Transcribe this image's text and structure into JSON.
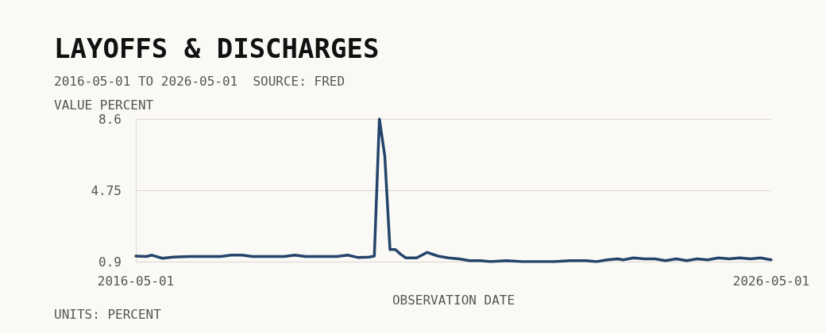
{
  "chart_data": {
    "type": "line",
    "title": "LAYOFFS & DISCHARGES",
    "subtitle": "2016-05-01 TO 2026-05-01  SOURCE: FRED",
    "ylabel": "VALUE PERCENT",
    "xlabel": "OBSERVATION DATE",
    "annotations": [
      "UNITS: PERCENT"
    ],
    "x": [
      "2016-05",
      "2016-07",
      "2016-08",
      "2016-10",
      "2016-12",
      "2017-03",
      "2017-06",
      "2017-09",
      "2017-11",
      "2018-01",
      "2018-03",
      "2018-06",
      "2018-09",
      "2018-11",
      "2019-01",
      "2019-04",
      "2019-07",
      "2019-09",
      "2019-11",
      "2020-01",
      "2020-02",
      "2020-03",
      "2020-04",
      "2020-05",
      "2020-06",
      "2020-07",
      "2020-08",
      "2020-10",
      "2020-12",
      "2021-02",
      "2021-04",
      "2021-06",
      "2021-08",
      "2021-10",
      "2021-12",
      "2022-03",
      "2022-06",
      "2022-09",
      "2022-12",
      "2023-03",
      "2023-06",
      "2023-08",
      "2023-10",
      "2023-12",
      "2024-01",
      "2024-03",
      "2024-05",
      "2024-07",
      "2024-09",
      "2024-11",
      "2025-01",
      "2025-03",
      "2025-05",
      "2025-07",
      "2025-09",
      "2025-11",
      "2026-01",
      "2026-03",
      "2026-05"
    ],
    "series": [
      {
        "color": "#24446b",
        "values": [
          1.2,
          1.18,
          1.25,
          1.08,
          1.15,
          1.18,
          1.18,
          1.18,
          1.25,
          1.25,
          1.18,
          1.18,
          1.18,
          1.25,
          1.18,
          1.18,
          1.18,
          1.25,
          1.12,
          1.15,
          1.2,
          8.6,
          6.6,
          1.55,
          1.55,
          1.3,
          1.1,
          1.1,
          1.4,
          1.2,
          1.1,
          1.05,
          0.95,
          0.95,
          0.9,
          0.95,
          0.9,
          0.9,
          0.9,
          0.95,
          0.95,
          0.9,
          1.0,
          1.05,
          1.0,
          1.1,
          1.05,
          1.05,
          0.95,
          1.05,
          0.95,
          1.05,
          1.0,
          1.1,
          1.05,
          1.1,
          1.05,
          1.1,
          1.0
        ]
      }
    ],
    "xlim": [
      "2016-05-01",
      "2026-05-01"
    ],
    "xticks": [
      "2016-05-01",
      "2026-05-01"
    ],
    "ylim": [
      0.9,
      8.6
    ],
    "yticks": [
      0.9,
      4.75,
      8.6
    ],
    "grid": "y",
    "marker": "none",
    "line_style": "solid"
  }
}
